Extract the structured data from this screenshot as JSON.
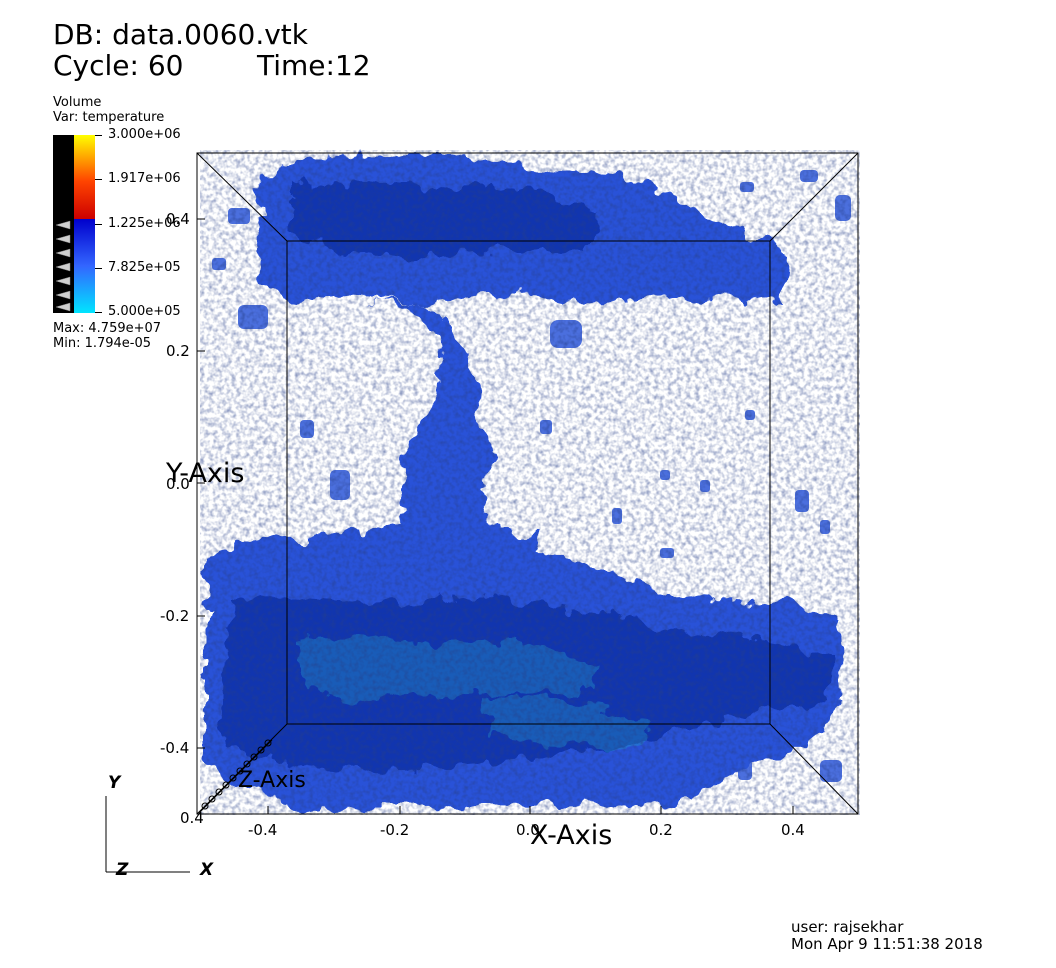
{
  "header": {
    "db_label": "DB: data.0060.vtk",
    "cycle_label": "Cycle: 60",
    "time_label": "Time:12"
  },
  "legend": {
    "plot_type": "Volume",
    "variable": "Var: temperature",
    "ticks": [
      "3.000e+06",
      "1.917e+06",
      "1.225e+06",
      "7.825e+05",
      "5.000e+05"
    ],
    "max_label": "Max:  4.759e+07",
    "min_label": "Min:  1.794e-05",
    "colors": {
      "hot_top": "#ffff00",
      "hot_mid": "#ff4400",
      "hot_bottom": "#cc0000",
      "cool_top": "#0000cc",
      "cool_mid": "#3366ff",
      "cool_bottom": "#00e5ff",
      "opacity_strip": "#000000"
    }
  },
  "axes": {
    "x_title": "X-Axis",
    "y_title": "Y-Axis",
    "z_title": "Z-Axis",
    "x_ticks": [
      "-0.4",
      "-0.2",
      "0.0",
      "0.2",
      "0.4"
    ],
    "y_ticks": [
      "0.4",
      "0.2",
      "0.0",
      "-0.2",
      "-0.4"
    ],
    "corner_tick": "0.4"
  },
  "triad": {
    "y": "Y",
    "x": "X",
    "z": "Z"
  },
  "footer": {
    "user": "user: rajsekhar",
    "date": "Mon Apr  9 11:51:38 2018"
  }
}
